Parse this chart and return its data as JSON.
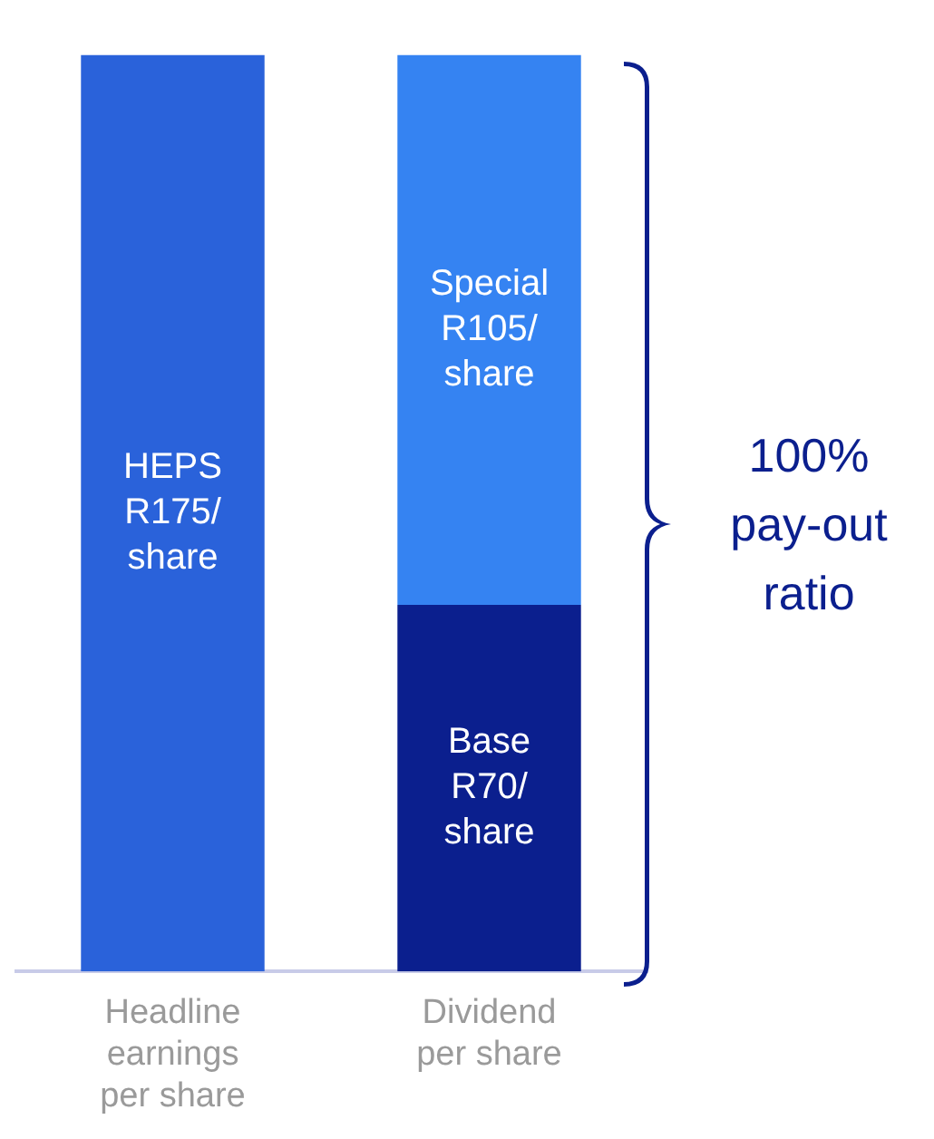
{
  "chart_data": {
    "type": "bar",
    "stacked": true,
    "categories": [
      "Headline earnings per share",
      "Dividend per share"
    ],
    "series": [
      {
        "color": "#2a62da",
        "values": [
          175,
          null
        ],
        "value_labels": [
          "HEPS R175/share",
          null
        ]
      },
      {
        "color": "#0b1f8e",
        "values": [
          null,
          70
        ],
        "value_labels": [
          null,
          "Base R70/share"
        ]
      },
      {
        "color": "#3583f2",
        "values": [
          null,
          105
        ],
        "value_labels": [
          null,
          "Special R105/share"
        ]
      }
    ],
    "annotations": [
      "100% pay-out ratio"
    ],
    "grid": false,
    "legend": false
  }
}
